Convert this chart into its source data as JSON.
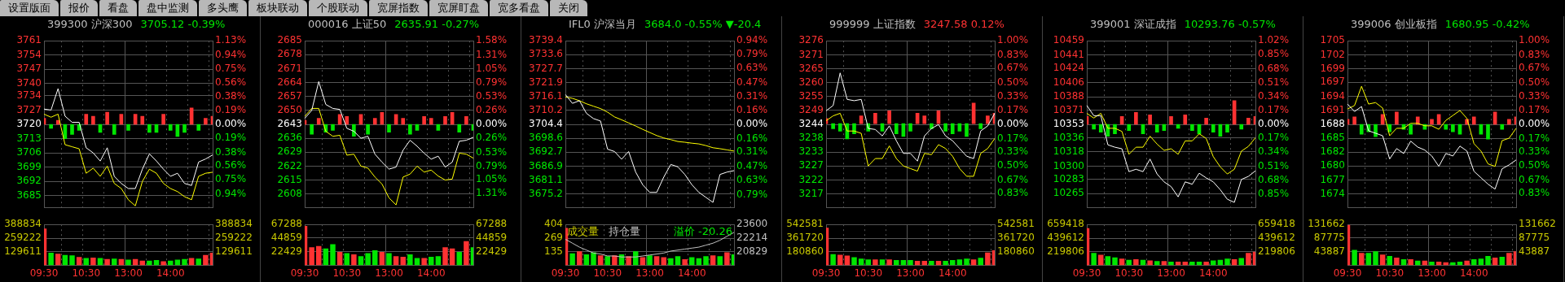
{
  "chart_data": [
    {
      "type": "other",
      "annotations": [
        "设置版面",
        "报价",
        "看盘",
        "盘中监测",
        "多头鹰",
        "板块联动",
        "个股联动",
        "宽屏指数",
        "宽屏盯盘",
        "宽多看盘",
        "关闭"
      ]
    },
    {
      "type": "line",
      "title": "399300 沪深300",
      "subtitle": "3705.12 -0.39%",
      "grid": true,
      "legend": false,
      "marker": "none",
      "tick_labels": "y",
      "categories": [
        null,
        null,
        null,
        null,
        null,
        null,
        null,
        null,
        null,
        null,
        null,
        null,
        null,
        null,
        null,
        null,
        null,
        null,
        null,
        null,
        null,
        null,
        null,
        null,
        null
      ],
      "ylim": [
        3679,
        3761
      ],
      "yticks": [
        3761,
        3754,
        3747,
        3740,
        3734,
        3727,
        3720,
        3713,
        3706,
        3699,
        3692,
        3685
      ],
      "y2lim": [
        -1.13,
        1.13
      ],
      "y2ticks": [
        {
          "value": 1.13,
          "label": "1.13%"
        },
        {
          "value": 0.94,
          "label": "0.94%"
        },
        {
          "value": 0.75,
          "label": "0.75%"
        },
        {
          "value": 0.56,
          "label": "0.56%"
        },
        {
          "value": 0.38,
          "label": "0.38%"
        },
        {
          "value": 0.19,
          "label": "0.19%"
        },
        {
          "value": 0,
          "label": "0.00%"
        },
        {
          "value": -0.19,
          "label": "0.19%"
        },
        {
          "value": -0.38,
          "label": "0.38%"
        },
        {
          "value": -0.56,
          "label": "0.56%"
        },
        {
          "value": -0.75,
          "label": "0.75%"
        },
        {
          "value": -0.94,
          "label": "0.94%"
        }
      ],
      "series": [
        {
          "type": "bar",
          "base": [
            3720,
            3720,
            3720,
            3720,
            3720,
            3720,
            3720,
            3720,
            3720,
            3720,
            3720,
            3720,
            3720,
            3720,
            3720,
            3720,
            3720,
            3720,
            3720,
            3720,
            3720,
            3720,
            3720,
            3720,
            3720
          ],
          "values": [
            3,
            -2,
            2,
            -7,
            -5,
            -3,
            5,
            4,
            -4,
            6,
            -5,
            5,
            -3,
            5,
            4,
            -4,
            -4,
            5,
            -3,
            -6,
            -4,
            8,
            -3,
            3,
            4
          ],
          "colors": [
            "#ff3232",
            "#00e600",
            "#ff3232",
            "#00e600",
            "#00e600",
            "#00e600",
            "#ff3232",
            "#ff3232",
            "#00e600",
            "#ff3232",
            "#00e600",
            "#ff3232",
            "#00e600",
            "#ff3232",
            "#ff3232",
            "#00e600",
            "#00e600",
            "#ff3232",
            "#00e600",
            "#00e600",
            "#00e600",
            "#ff3232",
            "#00e600",
            "#ff3232",
            "#ff3232"
          ]
        },
        {
          "type": "line",
          "color": "#ffffff",
          "values": [
            3727.5,
            3727,
            3737.5,
            3724,
            3721,
            3721,
            3708.5,
            3706,
            3702,
            3708.5,
            3694.5,
            3691,
            3688.5,
            3688.5,
            3698,
            3705.5,
            3702,
            3698,
            3694.5,
            3696,
            3691,
            3690,
            3701.5,
            3703,
            3705
          ]
        },
        {
          "type": "line",
          "color": "#ffff00",
          "values": [
            3725,
            3723.5,
            3725,
            3710,
            3709,
            3708,
            3696,
            3698.5,
            3694.5,
            3699.5,
            3691,
            3688.5,
            3683,
            3680,
            3692,
            3698,
            3696,
            3691,
            3688.5,
            3687,
            3684.5,
            3683,
            3694.5,
            3696,
            3696.5
          ]
        }
      ]
    },
    {
      "type": "bar",
      "grid": true,
      "legend": false,
      "categories": [
        "09:30",
        null,
        null,
        null,
        null,
        null,
        "10:30",
        null,
        null,
        null,
        null,
        null,
        "13:00",
        null,
        null,
        null,
        null,
        null,
        "14:00",
        null,
        null,
        null,
        null,
        null,
        null
      ],
      "ylim": [
        0,
        388834
      ],
      "yticks": [
        388834,
        259222,
        129611
      ],
      "y2lim": [
        0,
        388834
      ],
      "y2ticks": [
        388834,
        259222,
        129611
      ],
      "series": [
        {
          "type": "bar",
          "values": [
            350000,
            120000,
            110000,
            100000,
            95000,
            80000,
            70000,
            75000,
            70000,
            60000,
            65000,
            60000,
            55000,
            60000,
            45000,
            45000,
            50000,
            40000,
            45000,
            55000,
            60000,
            70000,
            65000,
            100000,
            120000
          ],
          "colors": [
            "#ff3232",
            "#00e600",
            "#ff3232",
            "#00e600",
            "#00e600",
            "#ff3232",
            "#00e600",
            "#ff3232",
            "#00e600",
            "#ff3232",
            "#00e600",
            "#ff3232",
            "#00e600",
            "#ff3232",
            "#ff3232",
            "#00e600",
            "#00e600",
            "#ff3232",
            "#00e600",
            "#00e600",
            "#00e600",
            "#ff3232",
            "#00e600",
            "#ff3232",
            "#ff3232"
          ]
        }
      ]
    },
    {
      "type": "line",
      "title": "000016 上证50",
      "subtitle": "2635.91 -0.27%",
      "grid": true,
      "legend": false,
      "marker": "none",
      "tick_labels": "y",
      "categories": [
        null,
        null,
        null,
        null,
        null,
        null,
        null,
        null,
        null,
        null,
        null,
        null,
        null,
        null,
        null,
        null,
        null,
        null,
        null,
        null,
        null,
        null,
        null,
        null,
        null
      ],
      "ylim": [
        2601,
        2685
      ],
      "yticks": [
        2685,
        2678,
        2671,
        2664,
        2657,
        2650,
        2643,
        2636,
        2629,
        2622,
        2615,
        2608
      ],
      "y2lim": [
        -1.58,
        1.58
      ],
      "y2ticks": [
        {
          "value": 1.58,
          "label": "1.58%"
        },
        {
          "value": 1.31,
          "label": "1.31%"
        },
        {
          "value": 1.05,
          "label": "1.05%"
        },
        {
          "value": 0.79,
          "label": "0.79%"
        },
        {
          "value": 0.53,
          "label": "0.53%"
        },
        {
          "value": 0.26,
          "label": "0.26%"
        },
        {
          "value": 0,
          "label": "0.00%"
        },
        {
          "value": -0.26,
          "label": "0.26%"
        },
        {
          "value": -0.53,
          "label": "0.53%"
        },
        {
          "value": -0.79,
          "label": "0.79%"
        },
        {
          "value": -1.05,
          "label": "1.05%"
        },
        {
          "value": -1.31,
          "label": "1.31%"
        }
      ],
      "series": [
        {
          "type": "bar",
          "base": [
            2643,
            2643,
            2643,
            2643,
            2643,
            2643,
            2643,
            2643,
            2643,
            2643,
            2643,
            2643,
            2643,
            2643,
            2643,
            2643,
            2643,
            2643,
            2643,
            2643,
            2643,
            2643,
            2643,
            2643,
            2643
          ],
          "values": [
            2,
            -5,
            3,
            -4,
            -3,
            5,
            4,
            -6,
            5,
            -5,
            3,
            6,
            -4,
            5,
            3,
            -5,
            -3,
            4,
            3,
            -3,
            4,
            6,
            -4,
            4,
            -3
          ],
          "colors": [
            "#ff3232",
            "#00e600",
            "#ff3232",
            "#00e600",
            "#00e600",
            "#ff3232",
            "#ff3232",
            "#00e600",
            "#ff3232",
            "#00e600",
            "#ff3232",
            "#ff3232",
            "#00e600",
            "#ff3232",
            "#ff3232",
            "#00e600",
            "#00e600",
            "#ff3232",
            "#ff3232",
            "#00e600",
            "#ff3232",
            "#ff3232",
            "#00e600",
            "#ff3232",
            "#00e600"
          ]
        },
        {
          "type": "line",
          "color": "#ffffff",
          "values": [
            2646,
            2650,
            2664.5,
            2653,
            2651,
            2650.5,
            2641,
            2639.5,
            2636,
            2637,
            2628,
            2624,
            2620.5,
            2621.5,
            2630,
            2635,
            2632,
            2628.5,
            2625.5,
            2627,
            2621.5,
            2624,
            2634.5,
            2635,
            2636.5
          ]
        },
        {
          "type": "line",
          "color": "#ffff00",
          "values": [
            2647,
            2651,
            2651,
            2639.5,
            2637,
            2637.5,
            2627.5,
            2628,
            2622,
            2621,
            2616.5,
            2613,
            2606,
            2602.5,
            2616.5,
            2618,
            2622,
            2619,
            2620,
            2617,
            2615,
            2615.5,
            2628.5,
            2628,
            2626
          ]
        }
      ]
    },
    {
      "type": "bar",
      "grid": true,
      "legend": false,
      "categories": [
        "09:30",
        null,
        null,
        null,
        null,
        null,
        "10:30",
        null,
        null,
        null,
        null,
        null,
        "13:00",
        null,
        null,
        null,
        null,
        null,
        "14:00",
        null,
        null,
        null,
        null,
        null,
        null
      ],
      "ylim": [
        0,
        67288
      ],
      "yticks": [
        67288,
        44859,
        22429
      ],
      "y2lim": [
        0,
        67288
      ],
      "y2ticks": [
        67288,
        44859,
        22429
      ],
      "series": [
        {
          "type": "bar",
          "values": [
            65000,
            30000,
            32000,
            28000,
            35000,
            22000,
            20000,
            18000,
            15000,
            20000,
            25000,
            22000,
            20000,
            15000,
            14000,
            18000,
            12000,
            12000,
            14000,
            15000,
            30000,
            28000,
            22000,
            40000,
            30000
          ],
          "colors": [
            "#ff3232",
            "#ff3232",
            "#ff3232",
            "#00e600",
            "#00e600",
            "#ff3232",
            "#00e600",
            "#ff3232",
            "#00e600",
            "#00e600",
            "#00e600",
            "#ff3232",
            "#00e600",
            "#ff3232",
            "#ff3232",
            "#00e600",
            "#00e600",
            "#ff3232",
            "#00e600",
            "#00e600",
            "#ff3232",
            "#ff3232",
            "#00e600",
            "#ff3232",
            "#00e600"
          ]
        }
      ]
    },
    {
      "type": "line",
      "title": "IFL0 沪深当月",
      "subtitle": "3684.0 -0.55% ▼-20.4",
      "grid": true,
      "legend": false,
      "marker": "none",
      "tick_labels": "y",
      "categories": [
        null,
        null,
        null,
        null,
        null,
        null,
        null,
        null,
        null,
        null,
        null,
        null,
        null,
        null,
        null,
        null,
        null,
        null,
        null,
        null,
        null,
        null,
        null,
        null,
        null
      ],
      "ylim": [
        3669.4,
        3739.4
      ],
      "yticks": [
        3739.4,
        3733.6,
        3727.7,
        3721.9,
        3716.1,
        3710.2,
        3704.4,
        3698.6,
        3692.7,
        3686.9,
        3681.1,
        3675.2
      ],
      "y2lim": [
        -0.94,
        0.94
      ],
      "y2ticks": [
        {
          "value": 0.94,
          "label": "0.94%"
        },
        {
          "value": 0.79,
          "label": "0.79%"
        },
        {
          "value": 0.63,
          "label": "0.63%"
        },
        {
          "value": 0.47,
          "label": "0.47%"
        },
        {
          "value": 0.31,
          "label": "0.31%"
        },
        {
          "value": 0.16,
          "label": "0.16%"
        },
        {
          "value": 0,
          "label": "0.00%"
        },
        {
          "value": -0.16,
          "label": "0.16%"
        },
        {
          "value": -0.31,
          "label": "0.31%"
        },
        {
          "value": -0.47,
          "label": "0.47%"
        },
        {
          "value": -0.63,
          "label": "0.63%"
        },
        {
          "value": -0.79,
          "label": "0.79%"
        }
      ],
      "series": [
        {
          "type": "line",
          "color": "#ffffff",
          "values": [
            3716.9,
            3713.2,
            3714.3,
            3709,
            3706.8,
            3705.8,
            3694,
            3693,
            3689.8,
            3693,
            3684.4,
            3679.1,
            3675.9,
            3675.9,
            3682.3,
            3687.6,
            3686.6,
            3683.4,
            3679.1,
            3675.9,
            3673.8,
            3671.7,
            3683.4,
            3684.4,
            3685
          ]
        },
        {
          "type": "line",
          "color": "#ffff00",
          "values": [
            3715.9,
            3715.3,
            3714.3,
            3713,
            3712,
            3711,
            3709.5,
            3707.5,
            3706.3,
            3705,
            3703.7,
            3702.3,
            3701,
            3699.7,
            3698.7,
            3698,
            3697.2,
            3696.9,
            3696.5,
            3696.2,
            3695.5,
            3694.6,
            3694.2,
            3693.7,
            3693.2
          ]
        }
      ]
    },
    {
      "type": "bar",
      "grid": true,
      "legend": false,
      "marker": "none",
      "annotations": [
        "成交量",
        "持仓量",
        "溢价 -20.26"
      ],
      "categories": [
        "09:30",
        null,
        null,
        null,
        null,
        null,
        "10:30",
        null,
        null,
        null,
        null,
        null,
        "13:00",
        null,
        null,
        null,
        null,
        null,
        "14:00",
        null,
        null,
        null,
        null,
        null,
        null
      ],
      "ylim": [
        0,
        404
      ],
      "yticks": [
        404,
        269,
        135
      ],
      "y2lim": [
        19443,
        23600
      ],
      "y2ticks": [
        23600,
        22214,
        20829
      ],
      "series": [
        {
          "type": "bar",
          "values": [
            370,
            120,
            140,
            110,
            130,
            100,
            90,
            100,
            110,
            90,
            140,
            80,
            100,
            90,
            80,
            70,
            90,
            60,
            80,
            70,
            90,
            100,
            90,
            130,
            110
          ],
          "colors": [
            "#ff3232",
            "#00e600",
            "#ff3232",
            "#00e600",
            "#00e600",
            "#ff3232",
            "#00e600",
            "#ff3232",
            "#00e600",
            "#ff3232",
            "#00e600",
            "#ff3232",
            "#00e600",
            "#ff3232",
            "#ff3232",
            "#00e600",
            "#00e600",
            "#ff3232",
            "#00e600",
            "#00e600",
            "#00e600",
            "#ff3232",
            "#00e600",
            "#ff3232",
            "#00e600"
          ]
        },
        {
          "type": "line",
          "axis": "y2",
          "color": "#c0c0c0",
          "values": [
            22100,
            21700,
            21300,
            21000,
            20700,
            20600,
            20400,
            20400,
            20300,
            20300,
            20300,
            20400,
            20500,
            20600,
            20700,
            20900,
            21000,
            21100,
            21200,
            21300,
            21500,
            21700,
            22000,
            22400,
            22800
          ]
        }
      ]
    },
    {
      "type": "line",
      "title": "999999 上证指数",
      "subtitle": "3247.58 0.12%",
      "grid": true,
      "legend": false,
      "marker": "none",
      "tick_labels": "y",
      "categories": [
        null,
        null,
        null,
        null,
        null,
        null,
        null,
        null,
        null,
        null,
        null,
        null,
        null,
        null,
        null,
        null,
        null,
        null,
        null,
        null,
        null,
        null,
        null,
        null,
        null
      ],
      "ylim": [
        3211.2,
        3276.2
      ],
      "yticks": [
        {
          "value": 3276.16,
          "label": "3276"
        },
        {
          "value": 3270.75,
          "label": "3271"
        },
        {
          "value": 3265.34,
          "label": "3265"
        },
        {
          "value": 3259.93,
          "label": "3260"
        },
        {
          "value": 3254.52,
          "label": "3255"
        },
        {
          "value": 3249.11,
          "label": "3249"
        },
        {
          "value": 3243.7,
          "label": "3244"
        },
        {
          "value": 3238.29,
          "label": "3238"
        },
        {
          "value": 3232.88,
          "label": "3233"
        },
        {
          "value": 3227.47,
          "label": "3227"
        },
        {
          "value": 3222.06,
          "label": "3222"
        },
        {
          "value": 3216.65,
          "label": "3217"
        }
      ],
      "y2lim": [
        -1.001,
        1.001
      ],
      "y2ticks": [
        {
          "value": 1,
          "label": "1.00%"
        },
        {
          "value": 0.83,
          "label": "0.83%"
        },
        {
          "value": 0.67,
          "label": "0.67%"
        },
        {
          "value": 0.5,
          "label": "0.50%"
        },
        {
          "value": 0.33,
          "label": "0.33%"
        },
        {
          "value": 0.17,
          "label": "0.17%"
        },
        {
          "value": 0,
          "label": "0.00%"
        },
        {
          "value": -0.17,
          "label": "0.17%"
        },
        {
          "value": -0.33,
          "label": "0.33%"
        },
        {
          "value": -0.5,
          "label": "0.50%"
        },
        {
          "value": -0.67,
          "label": "0.67%"
        },
        {
          "value": -0.83,
          "label": "0.83%"
        }
      ],
      "series": [
        {
          "type": "bar",
          "base": [
            3244,
            3244,
            3244,
            3244,
            3244,
            3244,
            3244,
            3244,
            3244,
            3244,
            3244,
            3244,
            3244,
            3244,
            3244,
            3244,
            3244,
            3244,
            3244,
            3244,
            3244,
            3244,
            3244,
            3244,
            3244
          ],
          "values": [
            2,
            -2,
            -3,
            -6,
            -4,
            3,
            -3,
            4,
            -3,
            5,
            -4,
            -5,
            -3,
            4,
            3,
            -2,
            5,
            -3,
            -4,
            -3,
            -5,
            8,
            -2,
            3,
            4
          ],
          "colors": [
            "#ff3232",
            "#00e600",
            "#00e600",
            "#00e600",
            "#00e600",
            "#ff3232",
            "#00e600",
            "#ff3232",
            "#00e600",
            "#ff3232",
            "#00e600",
            "#00e600",
            "#00e600",
            "#ff3232",
            "#ff3232",
            "#00e600",
            "#ff3232",
            "#00e600",
            "#00e600",
            "#00e600",
            "#00e600",
            "#ff3232",
            "#00e600",
            "#ff3232",
            "#ff3232"
          ]
        },
        {
          "type": "line",
          "color": "#ffffff",
          "values": [
            3249,
            3251,
            3263.7,
            3253.4,
            3252.9,
            3253.4,
            3242.1,
            3241.7,
            3239.2,
            3243.1,
            3237.3,
            3232.4,
            3232.4,
            3229.4,
            3239.2,
            3242.1,
            3243.6,
            3239.2,
            3237.3,
            3234.3,
            3231.3,
            3230.4,
            3241.1,
            3243.1,
            3248
          ]
        },
        {
          "type": "line",
          "color": "#ffff00",
          "values": [
            3245.1,
            3247,
            3248,
            3241.1,
            3241.1,
            3240.2,
            3227.5,
            3230.4,
            3230.4,
            3235.3,
            3230.4,
            3227.5,
            3226.5,
            3225.5,
            3232.4,
            3231.9,
            3235.8,
            3234.3,
            3231.3,
            3226.5,
            3223.5,
            3223.5,
            3232.4,
            3234.3,
            3238.2
          ]
        }
      ]
    },
    {
      "type": "bar",
      "grid": true,
      "legend": false,
      "categories": [
        "09:30",
        null,
        null,
        null,
        null,
        null,
        "10:30",
        null,
        null,
        null,
        null,
        null,
        "13:00",
        null,
        null,
        null,
        null,
        null,
        "14:00",
        null,
        null,
        null,
        null,
        null,
        null
      ],
      "ylim": [
        0,
        542581
      ],
      "yticks": [
        542581,
        361720,
        180860
      ],
      "y2lim": [
        0,
        542581
      ],
      "y2ticks": [
        542581,
        361720,
        180860
      ],
      "series": [
        {
          "type": "bar",
          "values": [
            500000,
            150000,
            140000,
            130000,
            110000,
            90000,
            80000,
            80000,
            80000,
            80000,
            70000,
            70000,
            70000,
            60000,
            60000,
            60000,
            60000,
            60000,
            70000,
            80000,
            90000,
            80000,
            100000,
            170000,
            200000
          ],
          "colors": [
            "#ff3232",
            "#00e600",
            "#ff3232",
            "#ff3232",
            "#00e600",
            "#00e600",
            "#00e600",
            "#ff3232",
            "#00e600",
            "#ff3232",
            "#00e600",
            "#00e600",
            "#00e600",
            "#ff3232",
            "#ff3232",
            "#00e600",
            "#ff3232",
            "#00e600",
            "#00e600",
            "#00e600",
            "#00e600",
            "#ff3232",
            "#00e600",
            "#ff3232",
            "#ff3232"
          ]
        }
      ]
    },
    {
      "type": "line",
      "title": "399001 深证成指",
      "subtitle": "10293.76 -0.57%",
      "grid": true,
      "legend": false,
      "marker": "none",
      "tick_labels": "y",
      "categories": [
        null,
        null,
        null,
        null,
        null,
        null,
        null,
        null,
        null,
        null,
        null,
        null,
        null,
        null,
        null,
        null,
        null,
        null,
        null,
        null,
        null,
        null,
        null,
        null,
        null
      ],
      "ylim": [
        10247,
        10459
      ],
      "yticks": [
        10459,
        10441,
        10424,
        10406,
        10388,
        10371,
        10353,
        10336,
        10318,
        10300,
        10283,
        10265
      ],
      "y2lim": [
        -1.02,
        1.02
      ],
      "y2ticks": [
        {
          "value": 1.02,
          "label": "1.02%"
        },
        {
          "value": 0.85,
          "label": "0.85%"
        },
        {
          "value": 0.68,
          "label": "0.68%"
        },
        {
          "value": 0.51,
          "label": "0.51%"
        },
        {
          "value": 0.34,
          "label": "0.34%"
        },
        {
          "value": 0.17,
          "label": "0.17%"
        },
        {
          "value": 0,
          "label": "0.00%"
        },
        {
          "value": -0.17,
          "label": "0.17%"
        },
        {
          "value": -0.34,
          "label": "0.34%"
        },
        {
          "value": -0.51,
          "label": "0.51%"
        },
        {
          "value": -0.68,
          "label": "0.68%"
        },
        {
          "value": -0.85,
          "label": "0.85%"
        }
      ],
      "series": [
        {
          "type": "bar",
          "base": [
            10353,
            10353,
            10353,
            10353,
            10353,
            10353,
            10353,
            10353,
            10353,
            10353,
            10353,
            10353,
            10353,
            10353,
            10353,
            10353,
            10353,
            10353,
            10353,
            10353,
            10353,
            10353,
            10353,
            10353,
            10353
          ],
          "values": [
            10,
            -6,
            -10,
            -15,
            -12,
            10,
            -8,
            15,
            -12,
            12,
            -10,
            -8,
            10,
            -5,
            12,
            -8,
            -12,
            8,
            -10,
            -15,
            -10,
            30,
            -6,
            8,
            10
          ],
          "colors": [
            "#ff3232",
            "#00e600",
            "#00e600",
            "#00e600",
            "#00e600",
            "#ff3232",
            "#00e600",
            "#ff3232",
            "#00e600",
            "#ff3232",
            "#00e600",
            "#00e600",
            "#ff3232",
            "#00e600",
            "#ff3232",
            "#00e600",
            "#00e600",
            "#ff3232",
            "#00e600",
            "#00e600",
            "#00e600",
            "#ff3232",
            "#00e600",
            "#ff3232",
            "#ff3232"
          ]
        },
        {
          "type": "line",
          "color": "#ffffff",
          "values": [
            10377,
            10364,
            10364,
            10327,
            10324,
            10322,
            10293,
            10296,
            10293,
            10309,
            10290,
            10280,
            10274,
            10261,
            10280,
            10277,
            10291,
            10285,
            10280,
            10270,
            10258,
            10254,
            10283,
            10287,
            10294
          ]
        },
        {
          "type": "line",
          "color": "#ffff00",
          "values": [
            10367,
            10361,
            10367,
            10348,
            10348,
            10344,
            10315,
            10324,
            10324,
            10338,
            10328,
            10320,
            10322,
            10315,
            10332,
            10332,
            10341,
            10335,
            10312,
            10299,
            10290,
            10296,
            10319,
            10325,
            10336
          ]
        }
      ]
    },
    {
      "type": "bar",
      "grid": true,
      "legend": false,
      "categories": [
        "09:30",
        null,
        null,
        null,
        null,
        null,
        "10:30",
        null,
        null,
        null,
        null,
        null,
        "13:00",
        null,
        null,
        null,
        null,
        null,
        "14:00",
        null,
        null,
        null,
        null,
        null,
        null
      ],
      "ylim": [
        0,
        659418
      ],
      "yticks": [
        659418,
        439612,
        219806
      ],
      "y2lim": [
        0,
        659418
      ],
      "y2ticks": [
        659418,
        439612,
        219806
      ],
      "series": [
        {
          "type": "bar",
          "values": [
            600000,
            200000,
            170000,
            150000,
            130000,
            110000,
            90000,
            100000,
            90000,
            80000,
            70000,
            70000,
            60000,
            60000,
            60000,
            60000,
            60000,
            60000,
            80000,
            90000,
            110000,
            100000,
            120000,
            200000,
            220000
          ],
          "colors": [
            "#ff3232",
            "#00e600",
            "#ff3232",
            "#00e600",
            "#00e600",
            "#ff3232",
            "#00e600",
            "#ff3232",
            "#00e600",
            "#ff3232",
            "#00e600",
            "#ff3232",
            "#00e600",
            "#ff3232",
            "#ff3232",
            "#00e600",
            "#00e600",
            "#ff3232",
            "#00e600",
            "#00e600",
            "#00e600",
            "#ff3232",
            "#00e600",
            "#ff3232",
            "#ff3232"
          ]
        }
      ]
    },
    {
      "type": "line",
      "title": "399006 创业板指",
      "subtitle": "1680.95 -0.42%",
      "grid": true,
      "legend": false,
      "marker": "none",
      "tick_labels": "y",
      "categories": [
        null,
        null,
        null,
        null,
        null,
        null,
        null,
        null,
        null,
        null,
        null,
        null,
        null,
        null,
        null,
        null,
        null,
        null,
        null,
        null,
        null,
        null,
        null,
        null,
        null
      ],
      "ylim": [
        1671.1,
        1704.9
      ],
      "yticks": [
        {
          "value": 1704.88,
          "label": "1705"
        },
        {
          "value": 1702.07,
          "label": "1702"
        },
        {
          "value": 1699.26,
          "label": "1699"
        },
        {
          "value": 1696.5,
          "label": "1697"
        },
        {
          "value": 1693.63,
          "label": "1694"
        },
        {
          "value": 1690.81,
          "label": "1691"
        },
        {
          "value": 1688,
          "label": "1688"
        },
        {
          "value": 1685.19,
          "label": "1685"
        },
        {
          "value": 1682.37,
          "label": "1682"
        },
        {
          "value": 1679.56,
          "label": "1680"
        },
        {
          "value": 1676.74,
          "label": "1677"
        },
        {
          "value": 1673.93,
          "label": "1674"
        }
      ],
      "y2lim": [
        -1.001,
        1.001
      ],
      "y2ticks": [
        {
          "value": 1,
          "label": "1.00%"
        },
        {
          "value": 0.83,
          "label": "0.83%"
        },
        {
          "value": 0.67,
          "label": "0.67%"
        },
        {
          "value": 0.5,
          "label": "0.50%"
        },
        {
          "value": 0.33,
          "label": "0.33%"
        },
        {
          "value": 0.17,
          "label": "0.17%"
        },
        {
          "value": 0,
          "label": "0.00%"
        },
        {
          "value": -0.17,
          "label": "0.17%"
        },
        {
          "value": -0.33,
          "label": "0.33%"
        },
        {
          "value": -0.5,
          "label": "0.50%"
        },
        {
          "value": -0.67,
          "label": "0.67%"
        },
        {
          "value": -0.83,
          "label": "0.83%"
        }
      ],
      "series": [
        {
          "type": "bar",
          "base": [
            1688,
            1688,
            1688,
            1688,
            1688,
            1688,
            1688,
            1688,
            1688,
            1688,
            1688,
            1688,
            1688,
            1688,
            1688,
            1688,
            1688,
            1688,
            1688,
            1688,
            1688,
            1688,
            1688,
            1688,
            1688
          ],
          "values": [
            1,
            1.5,
            -2,
            -1.5,
            -2.5,
            2,
            -1.5,
            2.5,
            -1,
            -2,
            1.5,
            -1,
            1,
            2,
            -1,
            -1.5,
            -2,
            1,
            1.5,
            -2,
            -3,
            2.5,
            -1,
            1,
            1.5
          ],
          "colors": [
            "#ff3232",
            "#ff3232",
            "#00e600",
            "#00e600",
            "#00e600",
            "#ff3232",
            "#00e600",
            "#ff3232",
            "#00e600",
            "#00e600",
            "#ff3232",
            "#00e600",
            "#ff3232",
            "#ff3232",
            "#00e600",
            "#00e600",
            "#00e600",
            "#ff3232",
            "#ff3232",
            "#00e600",
            "#00e600",
            "#ff3232",
            "#00e600",
            "#ff3232",
            "#ff3232"
          ]
        },
        {
          "type": "line",
          "color": "#ffffff",
          "values": [
            1692.1,
            1690.6,
            1691.6,
            1686.7,
            1686.2,
            1685.7,
            1681,
            1683.1,
            1682.1,
            1684.6,
            1683.4,
            1682.8,
            1681.6,
            1679.5,
            1682.1,
            1681.6,
            1683.6,
            1682.6,
            1678.5,
            1677.2,
            1675.9,
            1674.9,
            1679,
            1679.8,
            1680.8
          ]
        },
        {
          "type": "line",
          "color": "#ffff00",
          "values": [
            1691.1,
            1691.8,
            1695.7,
            1692.1,
            1692.4,
            1691.3,
            1685.7,
            1687.2,
            1687.2,
            1688.2,
            1688.2,
            1687.7,
            1687.7,
            1687,
            1688.8,
            1689.8,
            1690.8,
            1689.2,
            1684.1,
            1682.6,
            1680,
            1679.5,
            1684.7,
            1685.2,
            1687.2
          ]
        }
      ]
    },
    {
      "type": "bar",
      "grid": true,
      "legend": false,
      "categories": [
        "09:30",
        null,
        null,
        null,
        null,
        null,
        "10:30",
        null,
        null,
        null,
        null,
        null,
        "13:00",
        null,
        null,
        null,
        null,
        null,
        "14:00",
        null,
        null,
        null,
        null,
        null,
        null
      ],
      "ylim": [
        0,
        131662
      ],
      "yticks": [
        131662,
        87775,
        43887
      ],
      "y2lim": [
        0,
        131662
      ],
      "y2ticks": [
        131662,
        87775,
        43887
      ],
      "series": [
        {
          "type": "bar",
          "values": [
            130000,
            50000,
            40000,
            40000,
            45000,
            35000,
            30000,
            25000,
            20000,
            20000,
            15000,
            15000,
            12000,
            12000,
            10000,
            10000,
            12000,
            15000,
            20000,
            22000,
            30000,
            25000,
            28000,
            40000,
            45000
          ],
          "colors": [
            "#ff3232",
            "#00e600",
            "#ff3232",
            "#00e600",
            "#00e600",
            "#ff3232",
            "#00e600",
            "#ff3232",
            "#00e600",
            "#ff3232",
            "#00e600",
            "#ff3232",
            "#00e600",
            "#ff3232",
            "#ff3232",
            "#00e600",
            "#00e600",
            "#ff3232",
            "#00e600",
            "#00e600",
            "#00e600",
            "#ff3232",
            "#00e600",
            "#ff3232",
            "#ff3232"
          ]
        }
      ]
    }
  ]
}
